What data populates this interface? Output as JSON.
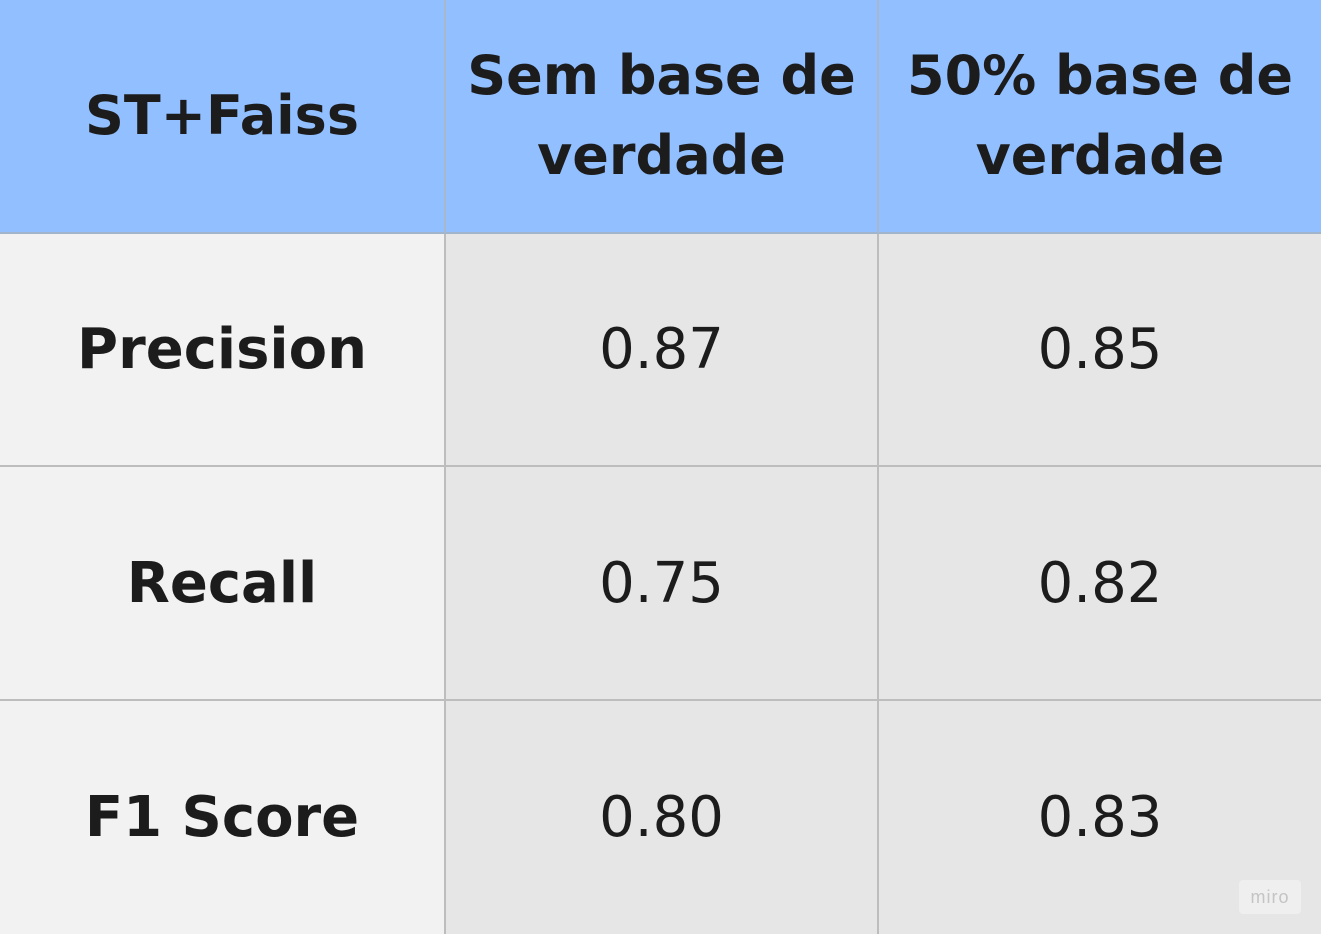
{
  "chart_data": {
    "type": "table",
    "columns": [
      "ST+Faiss",
      "Sem base de verdade",
      "50% base de verdade"
    ],
    "header_lines": [
      [
        "ST+Faiss"
      ],
      [
        "Sem base de",
        "verdade"
      ],
      [
        "50% base de",
        "verdade"
      ]
    ],
    "rows": [
      {
        "label": "Precision",
        "values": [
          "0.87",
          "0.85"
        ]
      },
      {
        "label": "Recall",
        "values": [
          "0.75",
          "0.82"
        ]
      },
      {
        "label": "F1 Score",
        "values": [
          "0.80",
          "0.83"
        ]
      }
    ]
  },
  "watermark": "miro",
  "colors": {
    "header_bg": "#91bfff",
    "rowhead_bg": "#f2f2f2",
    "value_bg": "#e6e6e6",
    "grid": "#bdbdbd",
    "text": "#1c1c1c"
  }
}
